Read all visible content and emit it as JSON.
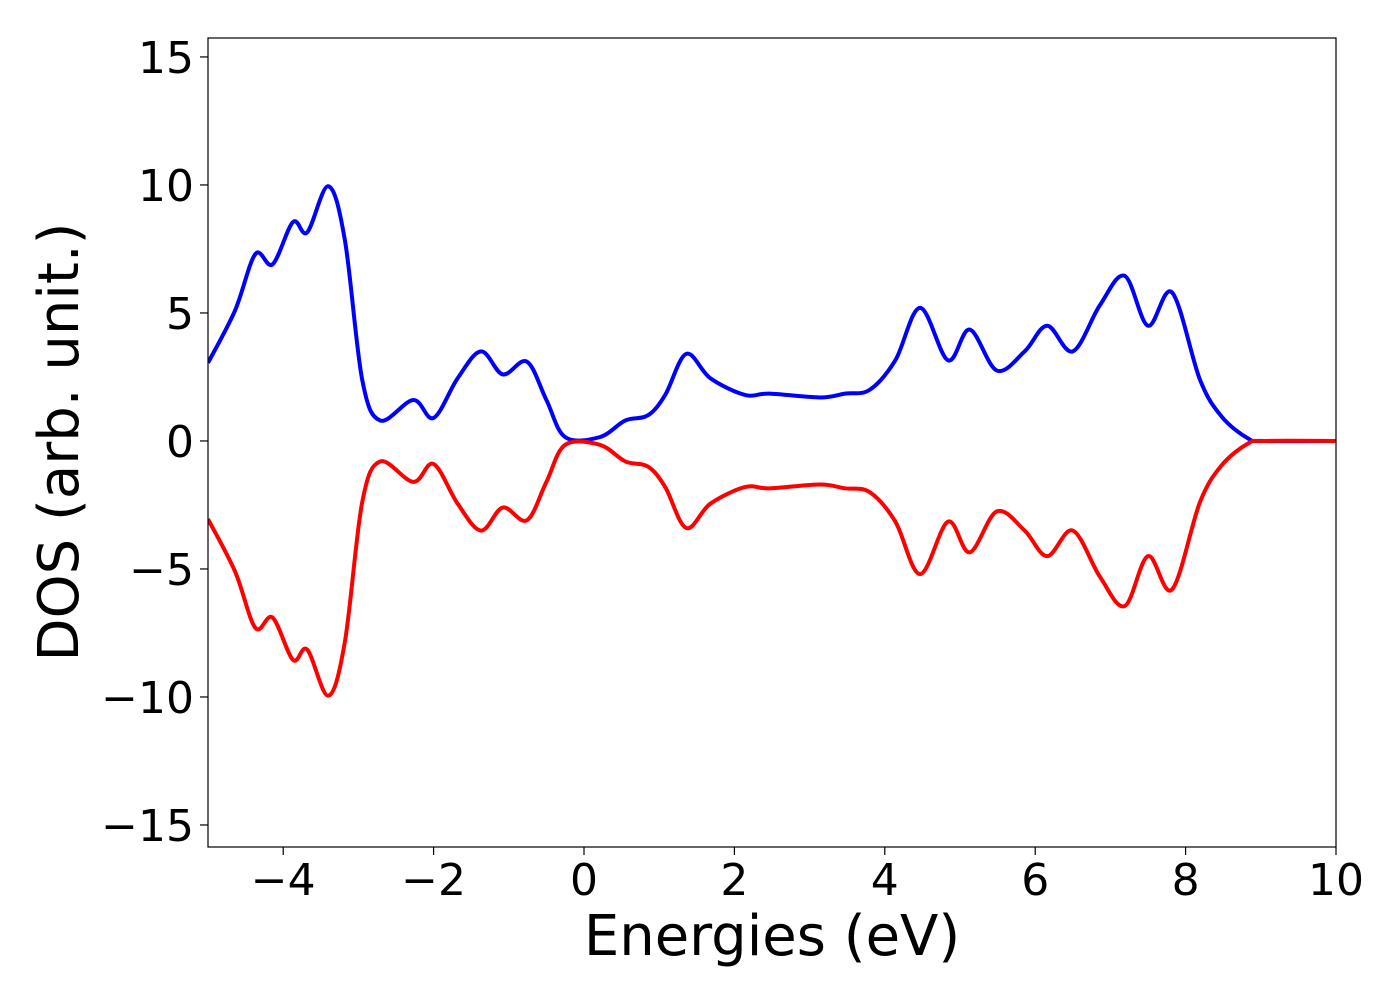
{
  "chart_data": {
    "type": "line",
    "x_label": "Energies (eV)",
    "y_label": "DOS (arb. unit.)",
    "x": [
      -5,
      -4.64,
      -4.37,
      -4.14,
      -3.87,
      -3.68,
      -3.4,
      -3.18,
      -2.95,
      -2.71,
      -2.27,
      -2.0,
      -1.68,
      -1.37,
      -1.08,
      -0.76,
      -0.5,
      -0.25,
      0.21,
      0.55,
      0.85,
      1.08,
      1.36,
      1.68,
      2.14,
      2.47,
      3.14,
      3.47,
      3.8,
      4.14,
      4.47,
      4.84,
      5.13,
      5.49,
      5.86,
      6.16,
      6.5,
      6.86,
      7.19,
      7.5,
      7.82,
      8.19,
      8.48,
      8.83,
      9.05,
      10
    ],
    "series": [
      {
        "color": "#0000ff",
        "values": [
          3.05,
          5.1,
          7.3,
          6.9,
          8.55,
          8.15,
          9.95,
          7.85,
          2.4,
          0.8,
          1.6,
          0.9,
          2.45,
          3.5,
          2.6,
          3.1,
          1.6,
          0.15,
          0.15,
          0.8,
          1.0,
          1.8,
          3.4,
          2.45,
          1.8,
          1.85,
          1.7,
          1.85,
          2.0,
          3.15,
          5.2,
          3.15,
          4.35,
          2.75,
          3.5,
          4.5,
          3.5,
          5.3,
          6.45,
          4.5,
          5.8,
          2.4,
          0.95,
          0.1,
          0,
          0
        ]
      },
      {
        "color": "#ff0000",
        "values": [
          -3.05,
          -5.1,
          -7.3,
          -6.9,
          -8.55,
          -8.15,
          -9.95,
          -7.85,
          -2.4,
          -0.8,
          -1.6,
          -0.9,
          -2.45,
          -3.5,
          -2.6,
          -3.1,
          -1.6,
          -0.15,
          -0.15,
          -0.8,
          -1.0,
          -1.8,
          -3.4,
          -2.45,
          -1.8,
          -1.85,
          -1.7,
          -1.85,
          -2.0,
          -3.15,
          -5.2,
          -3.15,
          -4.35,
          -2.75,
          -3.5,
          -4.5,
          -3.5,
          -5.3,
          -6.45,
          -4.5,
          -5.8,
          -2.4,
          -0.95,
          -0.1,
          0,
          0
        ]
      }
    ],
    "xlim": [
      -5,
      10
    ],
    "xticks": [
      {
        "value": -4,
        "label": "−4"
      },
      {
        "value": -2,
        "label": "−2"
      },
      0,
      2,
      4,
      6,
      8,
      10
    ],
    "ylim": [
      -15.86,
      15.74
    ],
    "yticks": [
      {
        "value": -15,
        "label": "−15"
      },
      {
        "value": -10,
        "label": "−10"
      },
      {
        "value": -5,
        "label": "−5"
      },
      0,
      5,
      10,
      15
    ]
  }
}
